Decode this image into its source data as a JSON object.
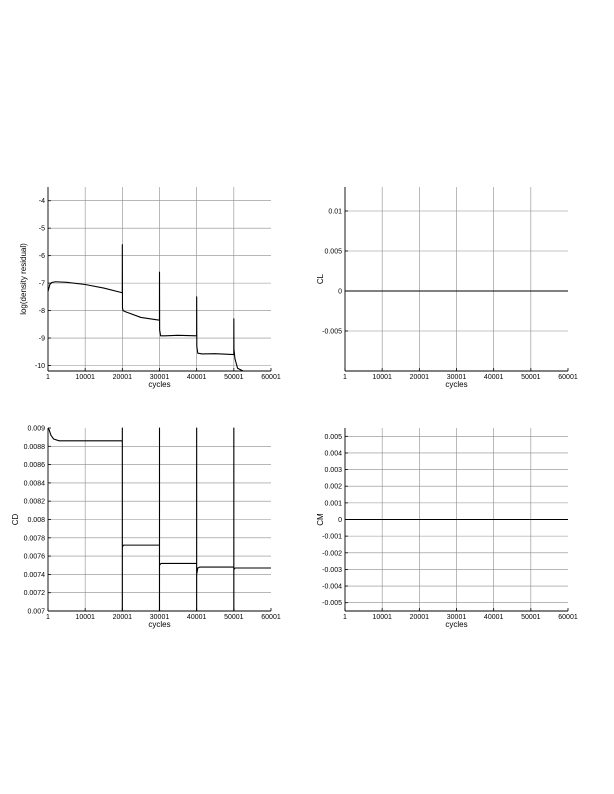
{
  "chart_data": [
    {
      "type": "line",
      "xlabel": "cycles",
      "ylabel": "log(density residual)",
      "xlim": [
        1,
        60001
      ],
      "ylim": [
        -10.2,
        -3.5
      ],
      "x_ticks": [
        "1",
        "10001",
        "20001",
        "30001",
        "40001",
        "50001",
        "60001"
      ],
      "y_ticks": [
        "-4",
        "-5",
        "-6",
        "-7",
        "-8",
        "-9",
        "-10"
      ],
      "grid": true,
      "series": [
        {
          "x": [
            1,
            500,
            1000,
            2000,
            5000,
            10001,
            15000,
            19990,
            20001,
            20040,
            20200,
            21000,
            25000,
            29990,
            30001,
            30040,
            30300,
            31500,
            35000,
            39990,
            40001,
            40040,
            40300,
            41500,
            45000,
            49990,
            50001,
            50030,
            50300,
            51000,
            52500,
            55000,
            60001
          ],
          "y": [
            -7.3,
            -7.05,
            -6.98,
            -6.95,
            -6.97,
            -7.05,
            -7.18,
            -7.35,
            -5.6,
            -7.9,
            -8.0,
            -8.05,
            -8.25,
            -8.35,
            -6.6,
            -8.7,
            -8.92,
            -8.92,
            -8.9,
            -8.92,
            -7.5,
            -9.3,
            -9.55,
            -9.58,
            -9.57,
            -9.6,
            -8.3,
            -9.4,
            -9.75,
            -10.1,
            -10.2,
            -10.25,
            -10.25
          ]
        }
      ]
    },
    {
      "type": "line",
      "xlabel": "cycles",
      "ylabel": "CL",
      "xlim": [
        1,
        60001
      ],
      "ylim": [
        -0.01,
        0.013
      ],
      "x_ticks": [
        "1",
        "10001",
        "20001",
        "30001",
        "40001",
        "50001",
        "60001"
      ],
      "y_ticks": [
        "0.01",
        "0.005",
        "0",
        "-0.005"
      ],
      "grid": true,
      "series": [
        {
          "x": [
            1,
            20001,
            30001,
            40001,
            50001,
            60001
          ],
          "y": [
            0,
            0,
            0,
            0,
            0,
            0
          ]
        }
      ]
    },
    {
      "type": "line",
      "xlabel": "cycles",
      "ylabel": "CD",
      "xlim": [
        1,
        60001
      ],
      "ylim": [
        0.007,
        0.009
      ],
      "x_ticks": [
        "1",
        "10001",
        "20001",
        "30001",
        "40001",
        "50001",
        "60001"
      ],
      "y_ticks": [
        "0.009",
        "0.0088",
        "0.0086",
        "0.0084",
        "0.0082",
        "0.008",
        "0.0078",
        "0.0076",
        "0.0074",
        "0.0072",
        "0.007"
      ],
      "grid": true,
      "series": [
        {
          "x": [
            1,
            300,
            800,
            1500,
            3000,
            6000,
            10001,
            19995,
            19996,
            20001,
            20002,
            20003,
            20300,
            25000,
            29995,
            29996,
            30001,
            30002,
            30003,
            30400,
            35000,
            39995,
            39996,
            40001,
            40002,
            40003,
            40300,
            40800,
            45000,
            49995,
            49996,
            50001,
            50002,
            50003,
            50300,
            55000,
            60001
          ],
          "y": [
            0.009,
            0.00898,
            0.00892,
            0.00888,
            0.00886,
            0.00886,
            0.00886,
            0.00886,
            0.007,
            0.009,
            0.007,
            0.0077,
            0.00772,
            0.00772,
            0.00772,
            0.007,
            0.009,
            0.007,
            0.0075,
            0.00752,
            0.00752,
            0.00752,
            0.007,
            0.009,
            0.00728,
            0.0074,
            0.00747,
            0.00748,
            0.00748,
            0.00748,
            0.007,
            0.009,
            0.007,
            0.00745,
            0.00747,
            0.00747,
            0.00747
          ]
        }
      ]
    },
    {
      "type": "line",
      "xlabel": "cycles",
      "ylabel": "CM",
      "xlim": [
        1,
        60001
      ],
      "ylim": [
        -0.0055,
        0.0055
      ],
      "x_ticks": [
        "1",
        "10001",
        "20001",
        "30001",
        "40001",
        "50001",
        "60001"
      ],
      "y_ticks": [
        "0.005",
        "0.004",
        "0.003",
        "0.002",
        "0.001",
        "0",
        "-0.001",
        "-0.002",
        "-0.003",
        "-0.004",
        "-0.005"
      ],
      "grid": true,
      "series": [
        {
          "x": [
            1,
            20001,
            30001,
            40001,
            50001,
            60001
          ],
          "y": [
            0,
            0,
            0,
            0,
            0,
            0
          ]
        }
      ]
    }
  ]
}
